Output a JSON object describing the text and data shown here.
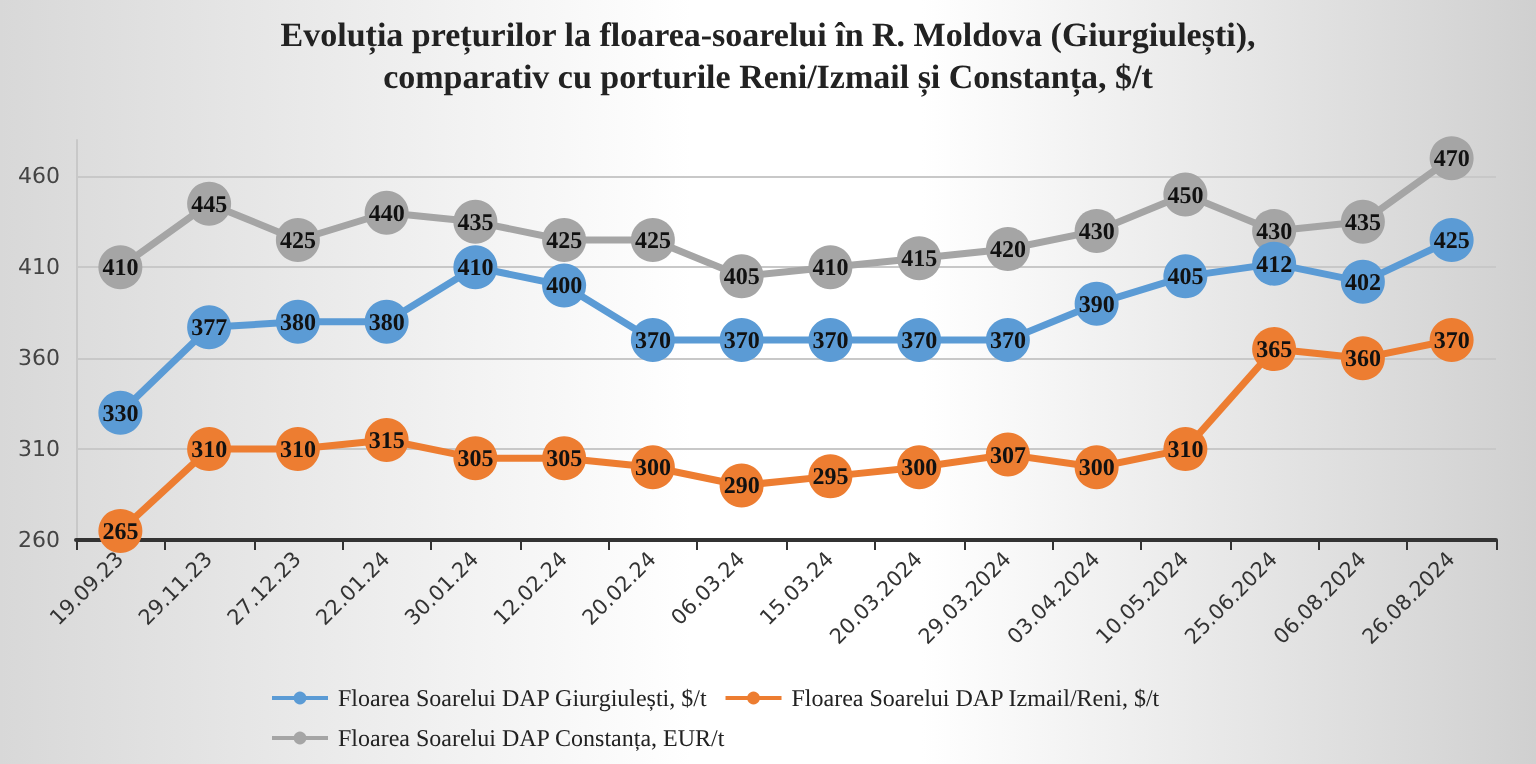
{
  "chart_data": {
    "type": "line",
    "title": "Evoluția prețurilor la floarea-soarelui în R. Moldova (Giurgiulești),\ncomparativ cu porturile Reni/Izmail și Constanța, $/t",
    "categories": [
      "19.09.23",
      "29.11.23",
      "27.12.23",
      "22.01.24",
      "30.01.24",
      "12.02.24",
      "20.02.24",
      "06.03.24",
      "15.03.24",
      "20.03.2024",
      "29.03.2024",
      "03.04.2024",
      "10.05.2024",
      "25.06.2024",
      "06.08.2024",
      "26.08.2024"
    ],
    "series": [
      {
        "name": "Floarea Soarelui DAP Giurgiulești, $/t",
        "color": "#5b9bd5",
        "values": [
          330,
          377,
          380,
          380,
          410,
          400,
          370,
          370,
          370,
          370,
          370,
          390,
          405,
          412,
          402,
          425
        ]
      },
      {
        "name": "Floarea Soarelui DAP Izmail/Reni, $/t",
        "color": "#ed7d31",
        "values": [
          265,
          310,
          310,
          315,
          305,
          305,
          300,
          290,
          295,
          300,
          307,
          300,
          310,
          365,
          360,
          370
        ]
      },
      {
        "name": "Floarea Soarelui DAP Constanța, EUR/t",
        "color": "#a5a5a5",
        "values": [
          410,
          445,
          425,
          440,
          435,
          425,
          425,
          405,
          410,
          415,
          420,
          430,
          450,
          430,
          435,
          470
        ]
      }
    ],
    "ylim": [
      260,
      480
    ],
    "yticks": [
      260,
      310,
      360,
      410,
      460
    ],
    "grid": "y",
    "legend": "bottom",
    "marker": "circle",
    "line_style": "solid",
    "data_labels": true
  }
}
